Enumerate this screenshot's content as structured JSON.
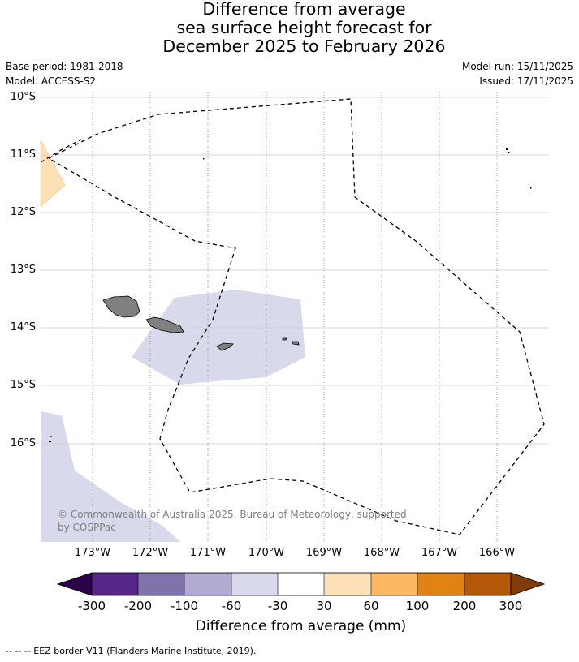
{
  "title_lines": [
    "Difference from average",
    "sea surface height forecast for",
    "December 2025 to February 2026"
  ],
  "base_period": "Base period: 1981-2018",
  "model": "Model: ACCESS-S2",
  "model_run": "Model run: 15/11/2025",
  "issued": "Issued: 17/11/2025",
  "lat_labels": [
    "10°S",
    "11°S",
    "12°S",
    "13°S",
    "14°S",
    "15°S",
    "16°S"
  ],
  "lon_labels": [
    "173°W",
    "172°W",
    "171°W",
    "170°W",
    "169°W",
    "168°W",
    "167°W",
    "166°W"
  ],
  "copyright_line1": "© Commonwealth of Australia 2025, Bureau of Meteorology, supported",
  "copyright_line2": "by COSPPac",
  "colorbar": {
    "labels": [
      "-300",
      "-200",
      "-100",
      "-60",
      "-30",
      "30",
      "60",
      "100",
      "200",
      "300"
    ],
    "colors": [
      "#2d004b",
      "#542788",
      "#8073ac",
      "#b2abd2",
      "#d8daeb",
      "#ffffff",
      "#fee0b6",
      "#fdb863",
      "#e08214",
      "#b35806",
      "#7f3b08"
    ],
    "title": "Difference from average (mm)"
  },
  "legend_text": "--  --  -- EEZ border V11 (Flanders Marine Institute, 2019)."
}
